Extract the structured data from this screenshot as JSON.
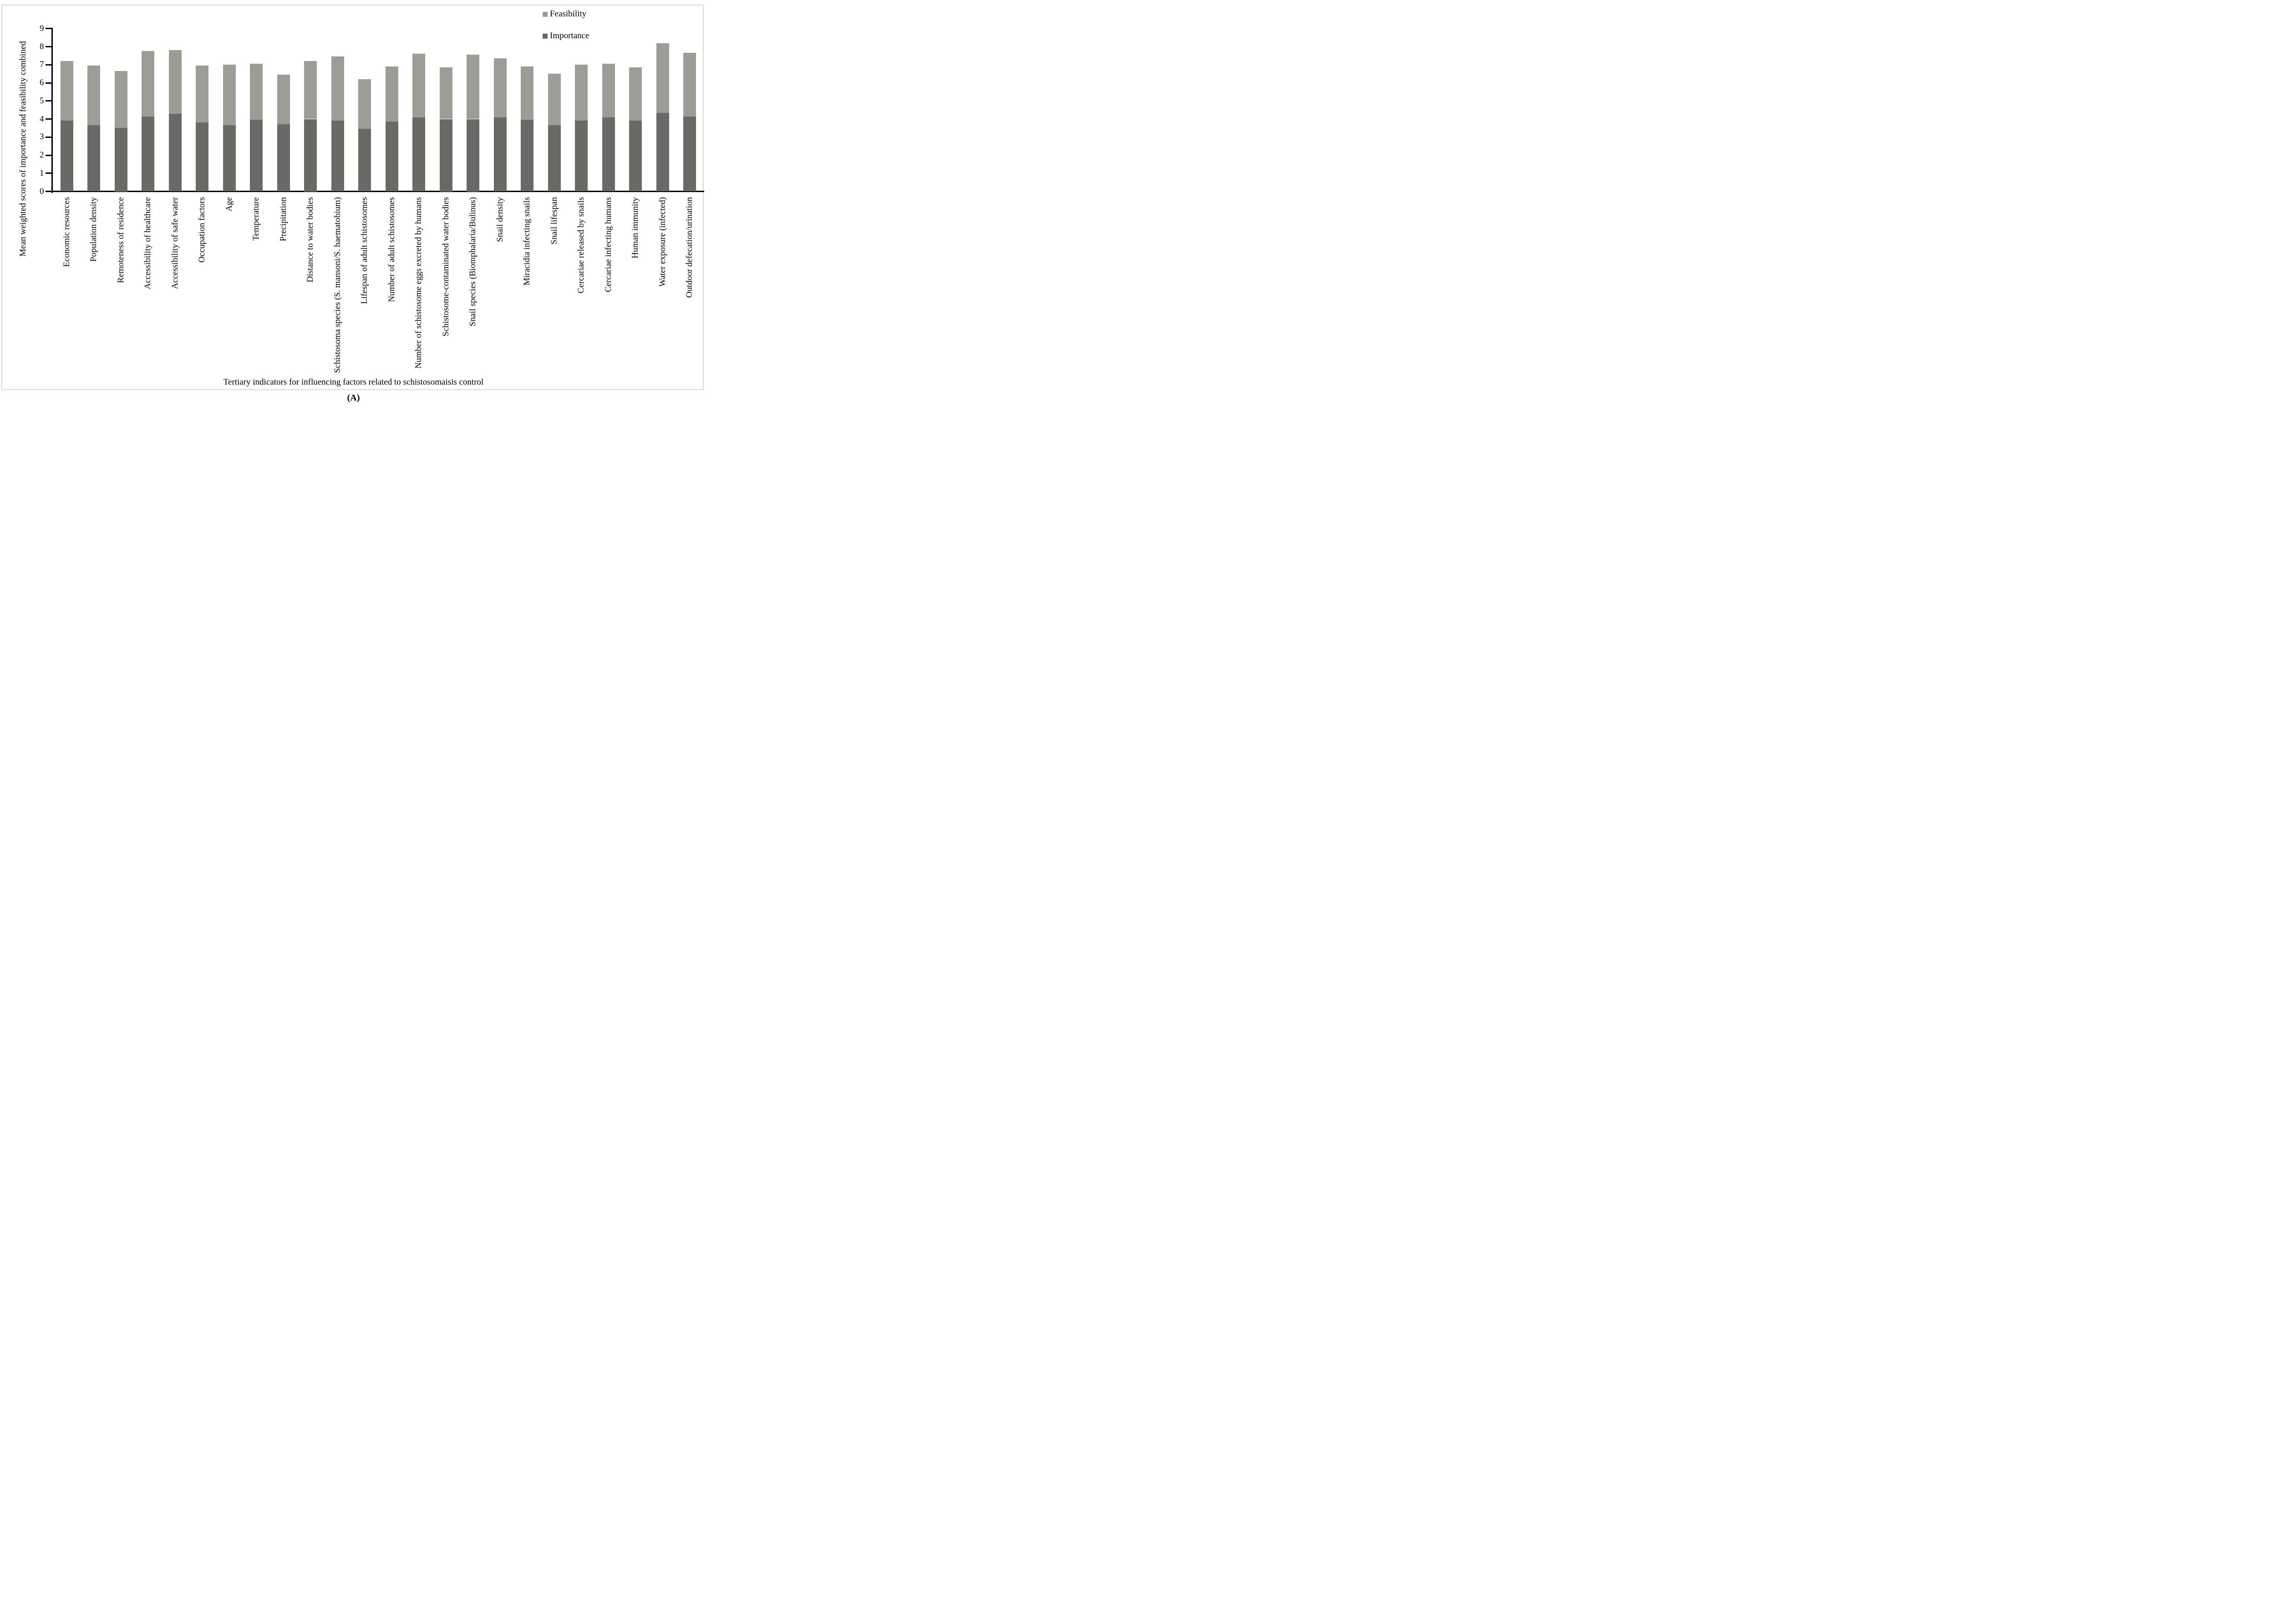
{
  "figure": {
    "caption": "(A)"
  },
  "legend": {
    "items": [
      {
        "label": "Feasibility",
        "color": "#9c9d97"
      },
      {
        "label": "Importance",
        "color": "#696a65"
      }
    ]
  },
  "chart_data": {
    "type": "bar",
    "stacked": true,
    "title": "",
    "xlabel": "Tertiary indicators for influencing factors related to schistosomaisis control",
    "ylabel": "Mean weighted scores of importance and feasibility combined",
    "ylim": [
      0,
      9
    ],
    "yticks": [
      0,
      1,
      2,
      3,
      4,
      5,
      6,
      7,
      8,
      9
    ],
    "grid": false,
    "legend_position": "top-right",
    "bar_colors": {
      "importance": "#696a65",
      "feasibility": "#9c9d97"
    },
    "categories": [
      "Economic resources",
      "Population density",
      "Remoteness of residence",
      "Accessibility of healthcare",
      "Accessibility of safe water",
      "Occupation factors",
      "Age",
      "Temperature",
      "Precipitation",
      "Distance to water bodies",
      "Schistosoma species (S. mansoni/S. haematobium)",
      "Lifespan of adult schistosomes",
      "Number of adult schistosomes",
      "Number of schistosome eggs excreted by humans",
      "Schistosome-contaminated water bodies",
      "Snail species (Biomphalaria/Bulinus)",
      "Snail density",
      "Miracidia infecting snails",
      "Snail lifespan",
      "Cercariae released by snails",
      "Cercariae infecting humans",
      "Human immunity",
      "Water exposure (infected)",
      "Outdoor defecation/urination"
    ],
    "series": [
      {
        "name": "Importance",
        "color": "#696a65",
        "values": [
          3.9,
          3.65,
          3.5,
          4.15,
          4.3,
          3.8,
          3.65,
          3.95,
          3.7,
          4.0,
          3.9,
          3.45,
          3.85,
          4.1,
          4.0,
          4.0,
          4.1,
          3.95,
          3.65,
          3.9,
          4.1,
          3.9,
          4.35,
          4.15
        ]
      },
      {
        "name": "Feasibility",
        "color": "#9c9d97",
        "values": [
          3.3,
          3.3,
          3.15,
          3.6,
          3.5,
          3.15,
          3.35,
          3.1,
          2.75,
          3.2,
          3.55,
          2.75,
          3.05,
          3.5,
          2.85,
          3.55,
          3.25,
          2.95,
          2.85,
          3.1,
          2.95,
          2.95,
          3.85,
          3.5
        ]
      }
    ]
  }
}
